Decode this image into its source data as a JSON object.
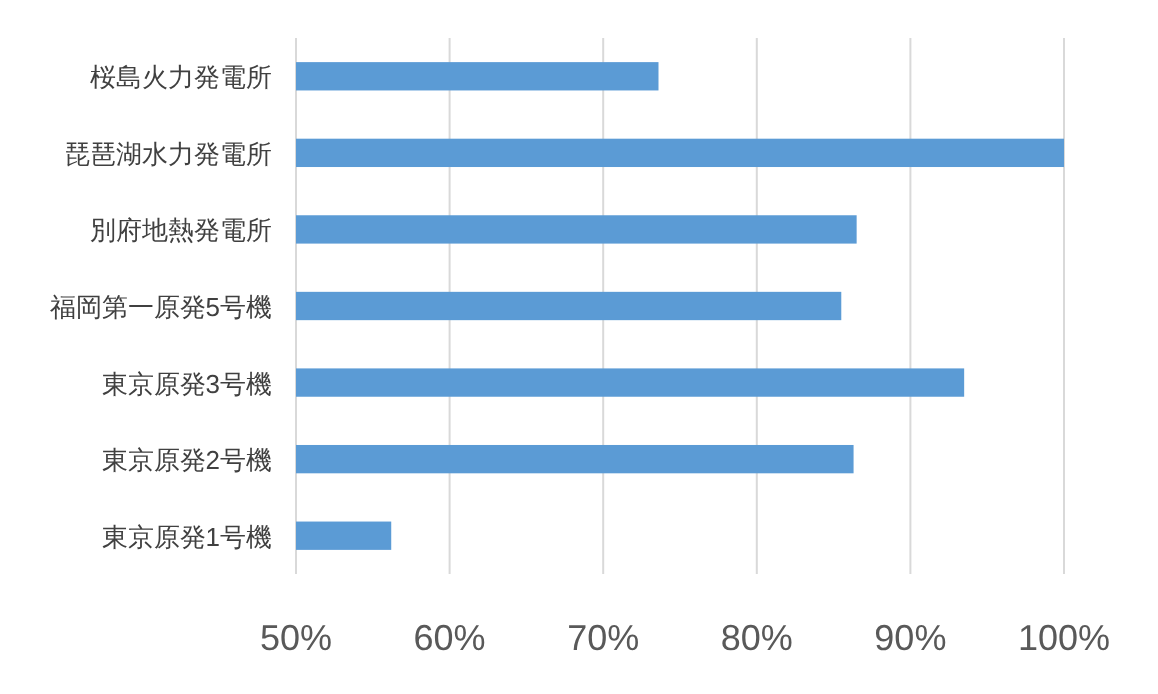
{
  "chart_data": {
    "type": "bar",
    "orientation": "horizontal",
    "categories": [
      "桜島火力発電所",
      "琵琶湖水力発電所",
      "別府地熱発電所",
      "福岡第一原発5号機",
      "東京原発3号機",
      "東京原発2号機",
      "東京原発1号機"
    ],
    "values": [
      73.6,
      100,
      86.5,
      85.5,
      93.5,
      86.3,
      56.2
    ],
    "color": "#5b9bd5",
    "xlim": [
      50,
      100
    ],
    "xticks": [
      {
        "value": 50,
        "label": "50%"
      },
      {
        "value": 60,
        "label": "60%"
      },
      {
        "value": 70,
        "label": "70%"
      },
      {
        "value": 80,
        "label": "80%"
      },
      {
        "value": 90,
        "label": "90%"
      },
      {
        "value": 100,
        "label": "100%"
      }
    ],
    "grid": "x"
  }
}
